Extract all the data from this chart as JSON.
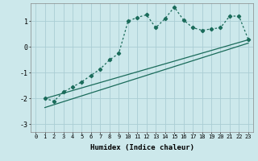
{
  "xlabel": "Humidex (Indice chaleur)",
  "background_color": "#cce8eb",
  "grid_color": "#aacdd4",
  "line_color": "#1a6b5a",
  "xlim": [
    -0.5,
    23.5
  ],
  "ylim": [
    -3.3,
    1.7
  ],
  "yticks": [
    -3,
    -2,
    -1,
    0,
    1
  ],
  "xticks": [
    0,
    1,
    2,
    3,
    4,
    5,
    6,
    7,
    8,
    9,
    10,
    11,
    12,
    13,
    14,
    15,
    16,
    17,
    18,
    19,
    20,
    21,
    22,
    23
  ],
  "line1_x": [
    1,
    2,
    3,
    4,
    5,
    6,
    7,
    8,
    9,
    10,
    11,
    12,
    13,
    14,
    15,
    16,
    17,
    18,
    19,
    20,
    21,
    22,
    23
  ],
  "line1_y": [
    -2.0,
    -2.1,
    -1.75,
    -1.55,
    -1.35,
    -1.1,
    -0.85,
    -0.5,
    -0.25,
    1.0,
    1.15,
    1.25,
    0.75,
    1.1,
    1.55,
    1.05,
    0.75,
    0.65,
    0.7,
    0.75,
    1.2,
    1.2,
    0.3
  ],
  "line2_x": [
    1,
    23
  ],
  "line2_y": [
    -2.0,
    0.28
  ],
  "line3_x": [
    1,
    23
  ],
  "line3_y": [
    -2.35,
    0.15
  ]
}
